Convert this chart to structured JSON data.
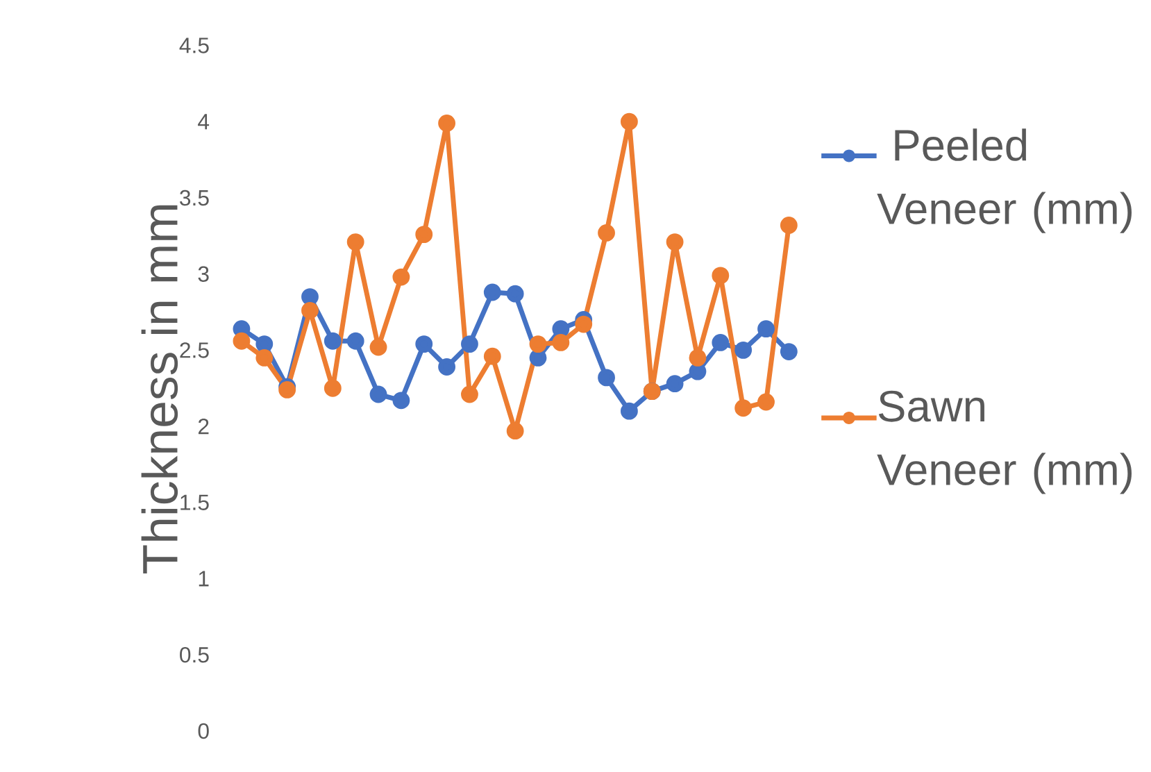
{
  "chart_data": {
    "type": "line",
    "ylabel": "Thickness in mm",
    "categories": [
      null,
      null,
      null,
      null,
      null,
      null,
      null,
      null,
      null,
      null,
      null,
      null,
      null,
      null,
      null,
      null,
      null,
      null,
      null,
      null,
      null,
      null,
      null,
      null,
      null
    ],
    "series": [
      {
        "name": " Peeled Veneer (mm)",
        "color": "#4472c4",
        "values": [
          2.64,
          2.54,
          2.26,
          2.85,
          2.56,
          2.56,
          2.21,
          2.17,
          2.54,
          2.39,
          2.54,
          2.88,
          2.87,
          2.45,
          2.64,
          2.7,
          2.32,
          2.1,
          2.23,
          2.28,
          2.36,
          2.55,
          2.5,
          2.64,
          2.49
        ]
      },
      {
        "name": "Sawn Veneer (mm)",
        "color": "#ed7d31",
        "values": [
          2.56,
          2.45,
          2.24,
          2.76,
          2.25,
          3.21,
          2.52,
          2.98,
          3.26,
          3.99,
          2.21,
          2.46,
          1.97,
          2.54,
          2.55,
          2.67,
          3.27,
          4.0,
          2.23,
          3.21,
          2.45,
          2.99,
          2.12,
          2.16,
          3.32
        ]
      }
    ],
    "ylim": [
      0,
      4.5
    ],
    "yticks": [
      0,
      0.5,
      1,
      1.5,
      2,
      2.5,
      3,
      3.5,
      4,
      4.5
    ],
    "grid": false,
    "legend": "right",
    "marker": "circle",
    "line_style": "solid"
  }
}
